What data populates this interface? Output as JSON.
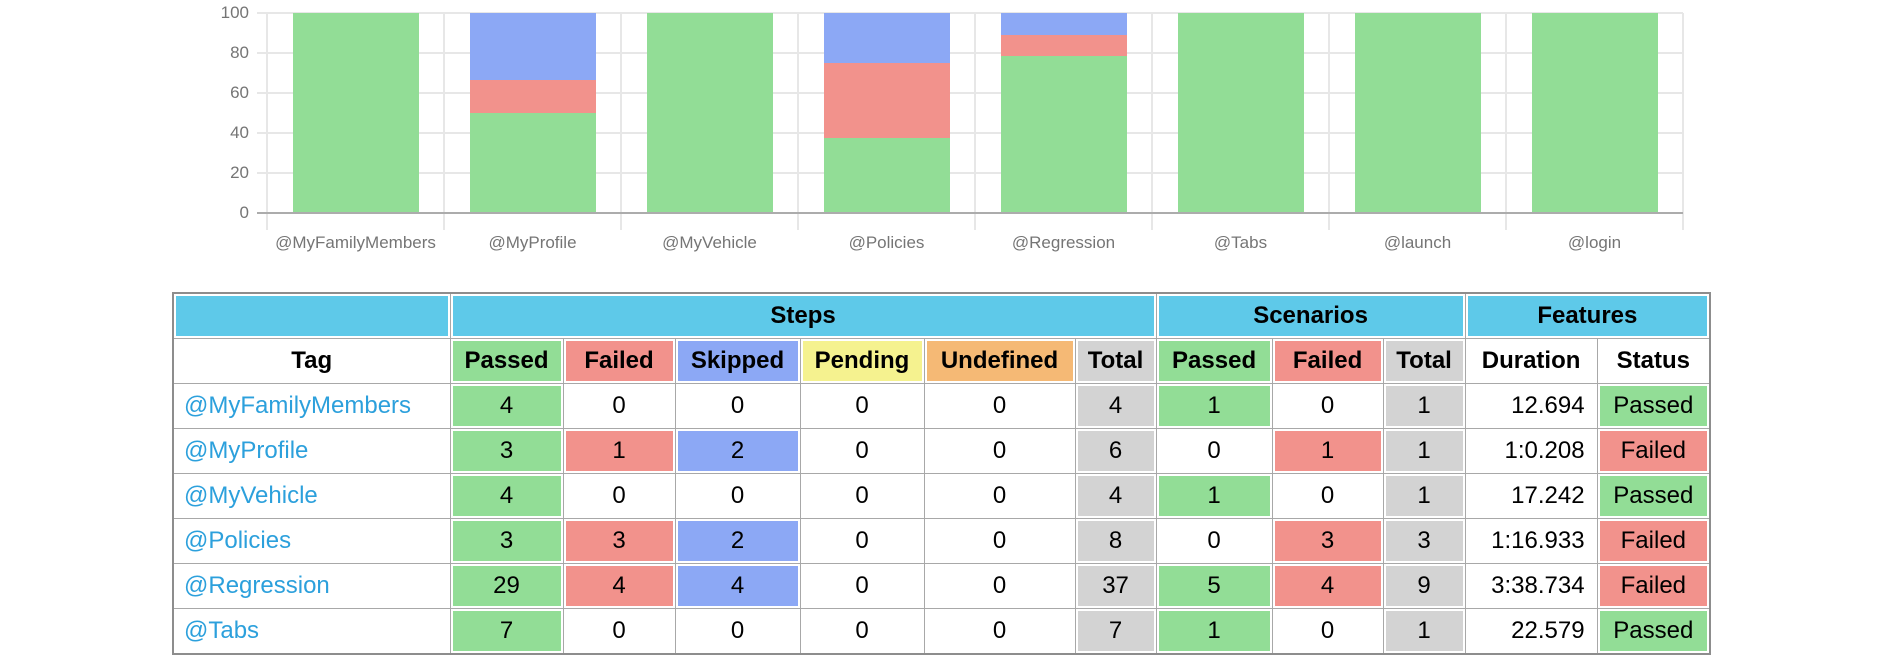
{
  "colors": {
    "passed": "#92DD96",
    "failed": "#F2928C",
    "skipped": "#8CA8F5",
    "pending": "#F5F28F",
    "undefined": "#F5B975",
    "total": "#D3D3D3",
    "group_header": "#5EC9E9",
    "tag_link": "#2CA0DC",
    "axis_text": "#757575",
    "gridline": "#E7E7E7",
    "axis_line": "#ACACAC"
  },
  "chart_data": {
    "type": "bar",
    "stacked": true,
    "unit": "percent",
    "ylim": [
      0,
      100
    ],
    "y_ticks": [
      0,
      20,
      40,
      60,
      80,
      100
    ],
    "grid": true,
    "legend": "none",
    "categories": [
      "@MyFamilyMembers",
      "@MyProfile",
      "@MyVehicle",
      "@Policies",
      "@Regression",
      "@Tabs",
      "@launch",
      "@login"
    ],
    "series": [
      {
        "name": "Passed",
        "color": "#92DD96",
        "values": [
          100,
          50,
          100,
          37.5,
          78.38,
          100,
          100,
          100
        ]
      },
      {
        "name": "Failed",
        "color": "#F2928C",
        "values": [
          0,
          16.67,
          0,
          37.5,
          10.81,
          0,
          0,
          0
        ]
      },
      {
        "name": "Skipped",
        "color": "#8CA8F5",
        "values": [
          0,
          33.33,
          0,
          25,
          10.81,
          0,
          0,
          0
        ]
      }
    ]
  },
  "table": {
    "group_headers": [
      {
        "label": "",
        "span": 1
      },
      {
        "label": "Steps",
        "span": 6
      },
      {
        "label": "Scenarios",
        "span": 3
      },
      {
        "label": "Features",
        "span": 2
      }
    ],
    "columns": [
      "Tag",
      "Passed",
      "Failed",
      "Skipped",
      "Pending",
      "Undefined",
      "Total",
      "Passed",
      "Failed",
      "Total",
      "Duration",
      "Status"
    ],
    "rows": [
      {
        "tag": "@MyFamilyMembers",
        "steps": {
          "passed": 4,
          "failed": 0,
          "skipped": 0,
          "pending": 0,
          "undefined": 0,
          "total": 4
        },
        "scenarios": {
          "passed": 1,
          "failed": 0,
          "total": 1
        },
        "duration": "12.694",
        "status": "Passed"
      },
      {
        "tag": "@MyProfile",
        "steps": {
          "passed": 3,
          "failed": 1,
          "skipped": 2,
          "pending": 0,
          "undefined": 0,
          "total": 6
        },
        "scenarios": {
          "passed": 0,
          "failed": 1,
          "total": 1
        },
        "duration": "1:0.208",
        "status": "Failed"
      },
      {
        "tag": "@MyVehicle",
        "steps": {
          "passed": 4,
          "failed": 0,
          "skipped": 0,
          "pending": 0,
          "undefined": 0,
          "total": 4
        },
        "scenarios": {
          "passed": 1,
          "failed": 0,
          "total": 1
        },
        "duration": "17.242",
        "status": "Passed"
      },
      {
        "tag": "@Policies",
        "steps": {
          "passed": 3,
          "failed": 3,
          "skipped": 2,
          "pending": 0,
          "undefined": 0,
          "total": 8
        },
        "scenarios": {
          "passed": 0,
          "failed": 3,
          "total": 3
        },
        "duration": "1:16.933",
        "status": "Failed"
      },
      {
        "tag": "@Regression",
        "steps": {
          "passed": 29,
          "failed": 4,
          "skipped": 4,
          "pending": 0,
          "undefined": 0,
          "total": 37
        },
        "scenarios": {
          "passed": 5,
          "failed": 4,
          "total": 9
        },
        "duration": "3:38.734",
        "status": "Failed"
      },
      {
        "tag": "@Tabs",
        "steps": {
          "passed": 7,
          "failed": 0,
          "skipped": 0,
          "pending": 0,
          "undefined": 0,
          "total": 7
        },
        "scenarios": {
          "passed": 1,
          "failed": 0,
          "total": 1
        },
        "duration": "22.579",
        "status": "Passed"
      }
    ]
  }
}
